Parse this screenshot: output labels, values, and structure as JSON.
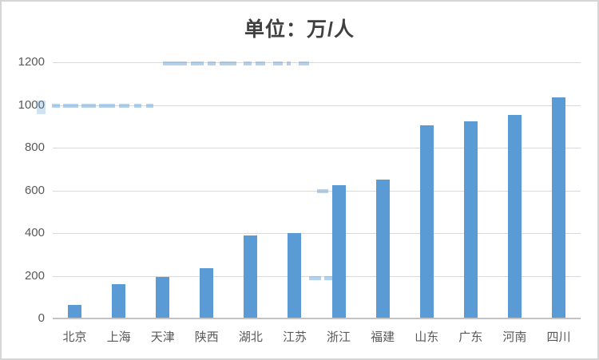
{
  "chart_data": {
    "type": "bar",
    "title": "单位：万/人",
    "categories": [
      "北京",
      "上海",
      "天津",
      "陕西",
      "湖北",
      "江苏",
      "浙江",
      "福建",
      "山东",
      "广东",
      "河南",
      "四川"
    ],
    "values": [
      65,
      160,
      195,
      235,
      390,
      400,
      625,
      650,
      905,
      925,
      955,
      1035
    ],
    "xlabel": "",
    "ylabel": "",
    "ylim": [
      0,
      1200
    ],
    "yticks": [
      0,
      200,
      400,
      600,
      800,
      1000,
      1200
    ],
    "grid": true,
    "legend": false,
    "bar_color": "#5B9BD5",
    "grid_color": "#D9D9D9",
    "axis_line_color": "#C3C3C3",
    "tick_label_color": "#595959",
    "title_color": "#404040",
    "background_color": "#FFFFFF",
    "watermark_color": "#5B9BD5"
  }
}
